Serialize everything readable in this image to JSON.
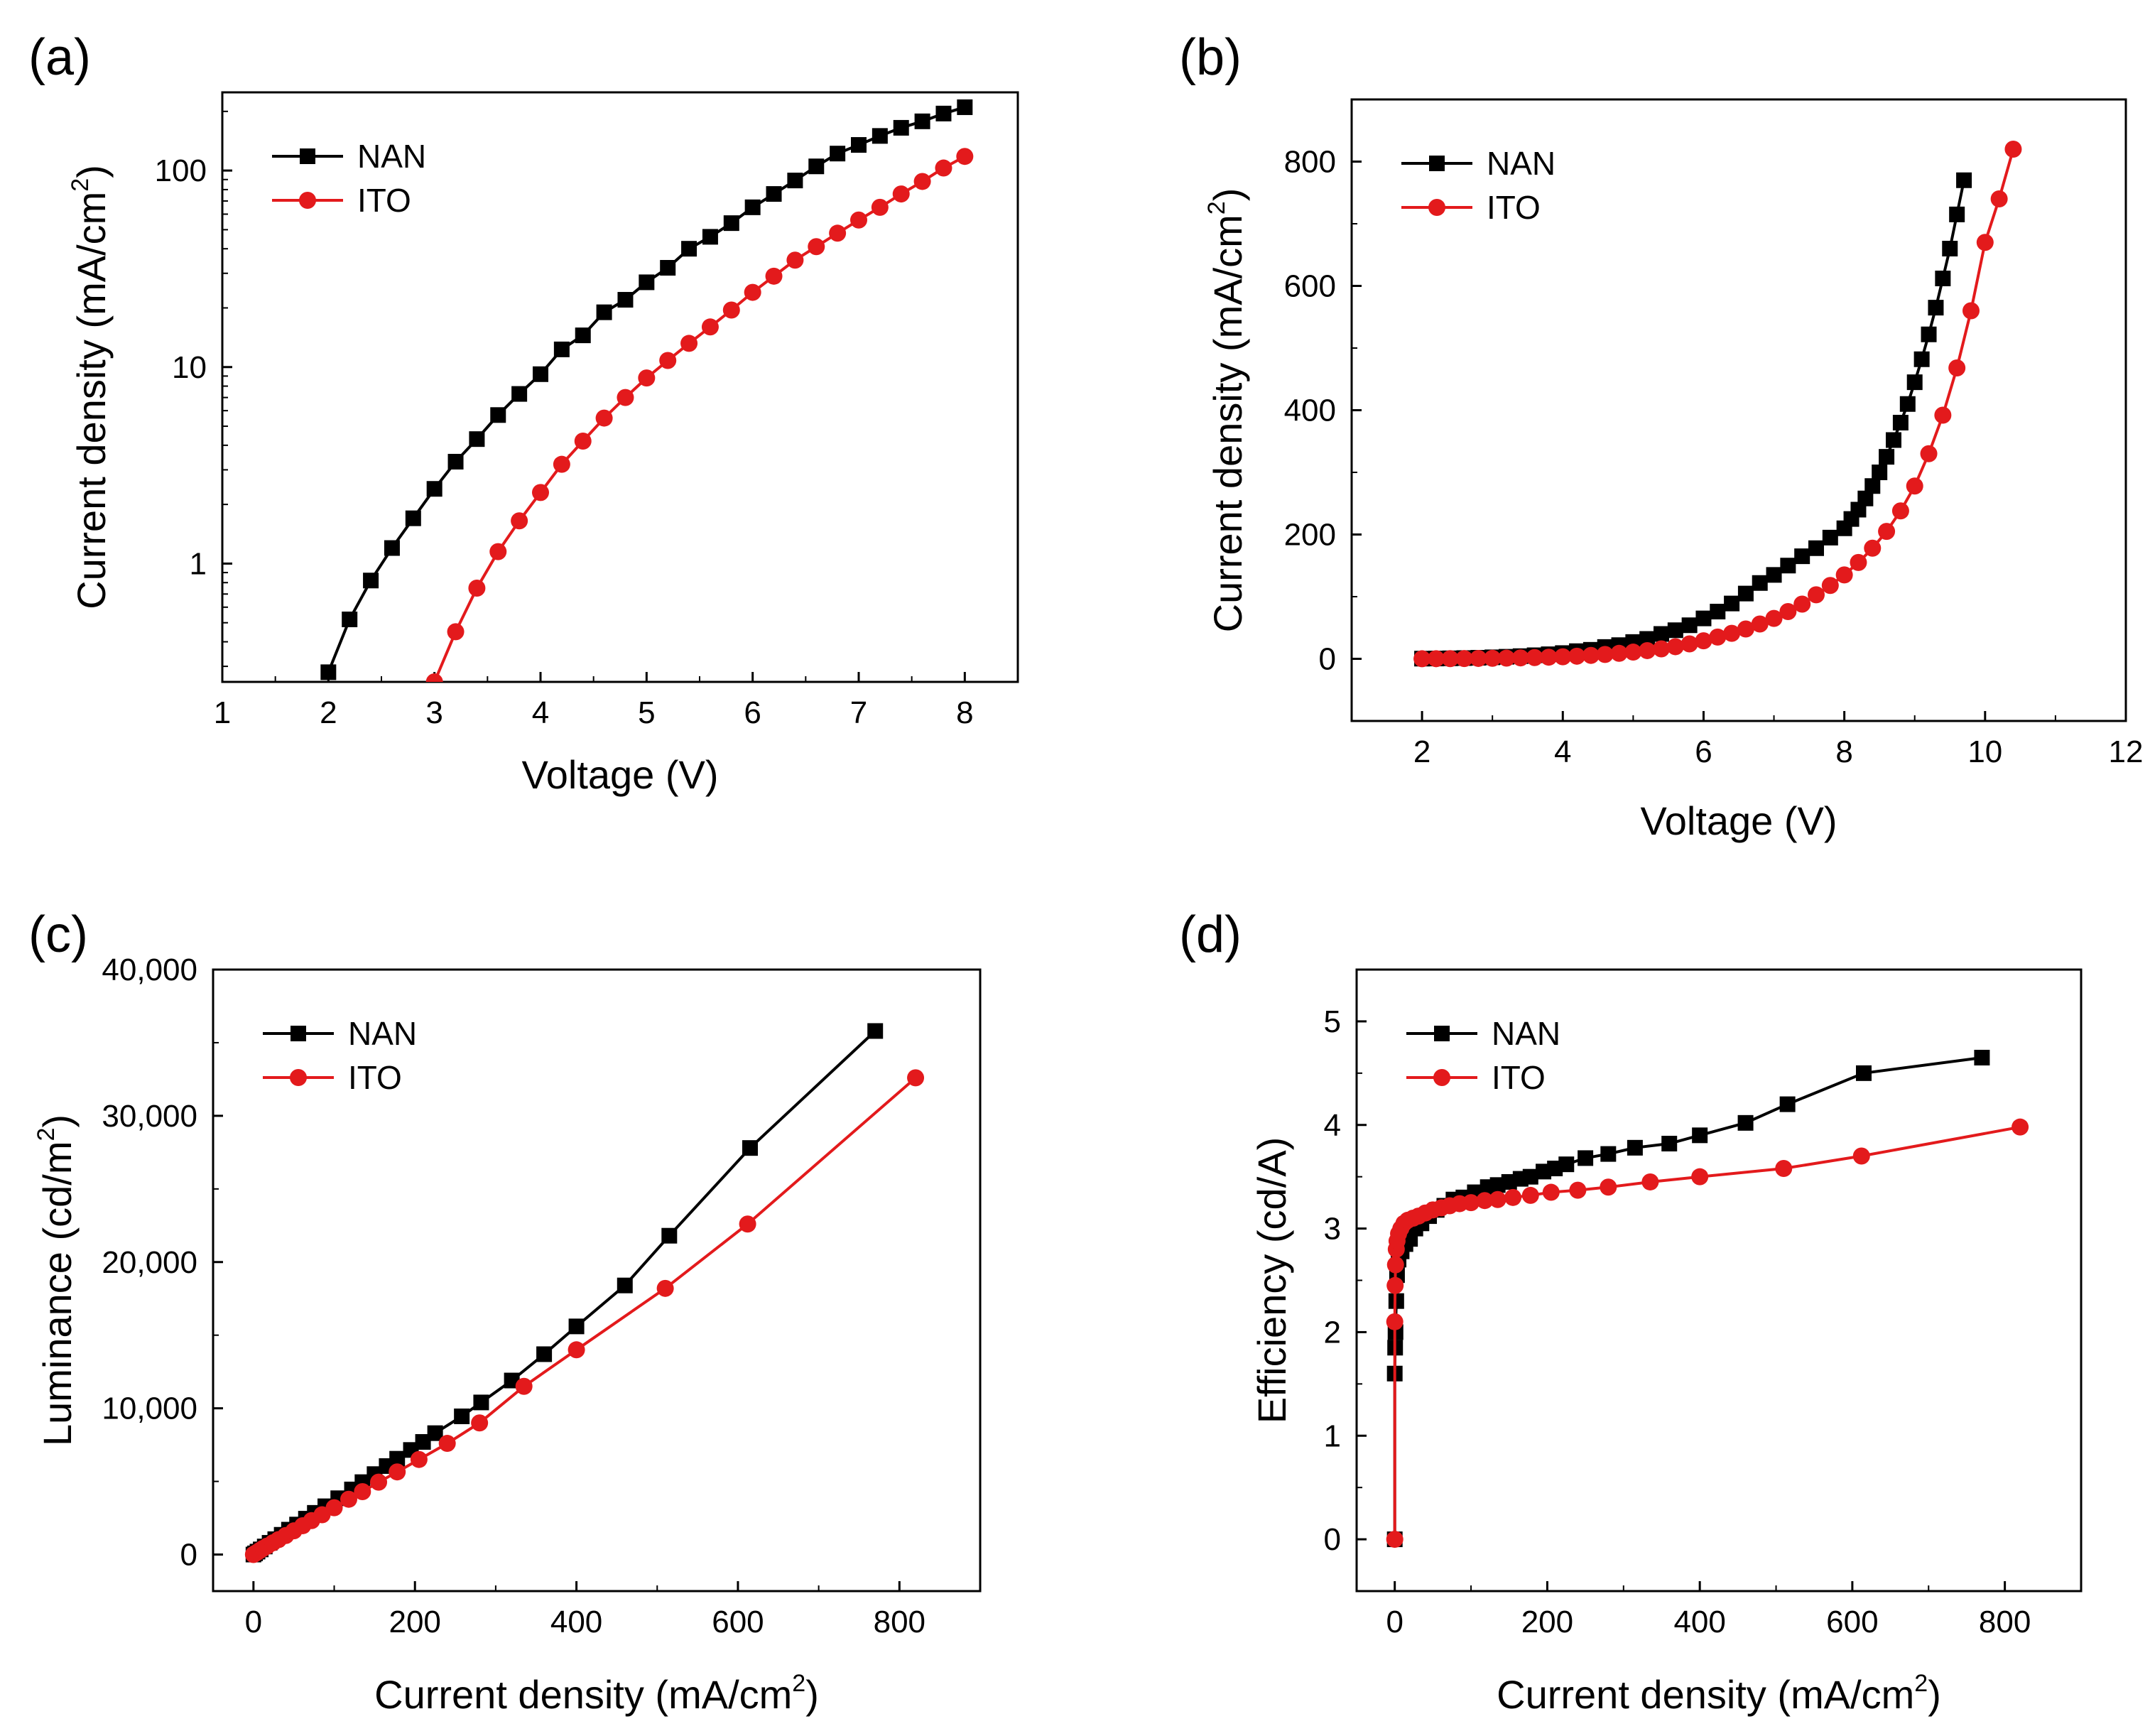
{
  "figure": {
    "title": ""
  },
  "chart_data": [
    {
      "panel": "(a)",
      "type": "line",
      "title": "",
      "xlabel": "Voltage (V)",
      "ylabel_main": "Current density (mA/cm",
      "ylabel_sup": "2",
      "ylabel_end": ")",
      "xscale": "linear",
      "yscale": "log",
      "xlim": [
        1,
        8.5
      ],
      "ylim": [
        0.25,
        250
      ],
      "xticks": [
        1,
        2,
        3,
        4,
        5,
        6,
        7,
        8
      ],
      "xtick_labels": [
        "1",
        "2",
        "3",
        "4",
        "5",
        "6",
        "7",
        "8"
      ],
      "yticks": [
        1,
        10,
        100
      ],
      "ytick_labels": [
        "1",
        "10",
        "100"
      ],
      "legend_position": "top-left",
      "series": [
        {
          "name": "NAN",
          "color": "#000000",
          "marker": "square",
          "x": [
            2.0,
            2.2,
            2.4,
            2.6,
            2.8,
            3.0,
            3.2,
            3.4,
            3.6,
            3.8,
            4.0,
            4.2,
            4.4,
            4.6,
            4.8,
            5.0,
            5.2,
            5.4,
            5.6,
            5.8,
            6.0,
            6.2,
            6.4,
            6.6,
            6.8,
            7.0,
            7.2,
            7.4,
            7.6,
            7.8,
            8.0
          ],
          "y": [
            0.28,
            0.52,
            0.82,
            1.2,
            1.7,
            2.4,
            3.3,
            4.3,
            5.7,
            7.3,
            9.2,
            12.3,
            14.5,
            19.0,
            22.0,
            27.0,
            32.0,
            40.0,
            46.0,
            54.0,
            65.0,
            76.0,
            89.0,
            105.0,
            122.0,
            135.0,
            150.0,
            165.0,
            178.0,
            195.0,
            210.0
          ]
        },
        {
          "name": "ITO",
          "color": "#e31a1c",
          "marker": "circle",
          "x": [
            3.0,
            3.2,
            3.4,
            3.6,
            3.8,
            4.0,
            4.2,
            4.4,
            4.6,
            4.8,
            5.0,
            5.2,
            5.4,
            5.6,
            5.8,
            6.0,
            6.2,
            6.4,
            6.6,
            6.8,
            7.0,
            7.2,
            7.4,
            7.6,
            7.8,
            8.0
          ],
          "y": [
            0.25,
            0.45,
            0.75,
            1.15,
            1.65,
            2.3,
            3.2,
            4.2,
            5.5,
            7.0,
            8.8,
            10.8,
            13.2,
            16.0,
            19.5,
            24.0,
            29.0,
            35.0,
            41.0,
            48.0,
            56.0,
            65.0,
            76.0,
            88.0,
            103.0,
            118.0
          ]
        }
      ]
    },
    {
      "panel": "(b)",
      "type": "line",
      "title": "",
      "xlabel": "Voltage (V)",
      "ylabel_main": "Current density (mA/cm",
      "ylabel_sup": "2",
      "ylabel_end": ")",
      "xscale": "linear",
      "yscale": "linear",
      "xlim": [
        1,
        12
      ],
      "ylim": [
        -100,
        900
      ],
      "xticks": [
        2,
        4,
        6,
        8,
        10,
        12
      ],
      "xtick_labels": [
        "2",
        "4",
        "6",
        "8",
        "10",
        "12"
      ],
      "yticks": [
        0,
        200,
        400,
        600,
        800
      ],
      "ytick_labels": [
        "0",
        "200",
        "400",
        "600",
        "800"
      ],
      "legend_position": "top-left",
      "series": [
        {
          "name": "NAN",
          "color": "#000000",
          "marker": "square",
          "x": [
            2.0,
            2.2,
            2.4,
            2.6,
            2.8,
            3.0,
            3.2,
            3.4,
            3.6,
            3.8,
            4.0,
            4.2,
            4.4,
            4.6,
            4.8,
            5.0,
            5.2,
            5.4,
            5.6,
            5.8,
            6.0,
            6.2,
            6.4,
            6.6,
            6.8,
            7.0,
            7.2,
            7.4,
            7.6,
            7.8,
            8.0,
            8.1,
            8.2,
            8.3,
            8.4,
            8.5,
            8.6,
            8.7,
            8.8,
            8.9,
            9.0,
            9.1,
            9.2,
            9.3,
            9.4,
            9.5,
            9.6,
            9.7
          ],
          "y": [
            0.3,
            0.5,
            0.8,
            1.2,
            1.7,
            2.4,
            3.3,
            4.3,
            5.7,
            7.3,
            9.2,
            12.3,
            14.5,
            19.0,
            22.0,
            27.0,
            32.0,
            40.0,
            46.0,
            54.0,
            65.0,
            76.0,
            89.0,
            105.0,
            122.0,
            135.0,
            150.0,
            165.0,
            178.0,
            195.0,
            210.0,
            225.0,
            240.0,
            258.0,
            278.0,
            300.0,
            325.0,
            352.0,
            380.0,
            410.0,
            445.0,
            482.0,
            522.0,
            565.0,
            612.0,
            660.0,
            715.0,
            770.0
          ]
        },
        {
          "name": "ITO",
          "color": "#e31a1c",
          "marker": "circle",
          "x": [
            2.0,
            2.2,
            2.4,
            2.6,
            2.8,
            3.0,
            3.2,
            3.4,
            3.6,
            3.8,
            4.0,
            4.2,
            4.4,
            4.6,
            4.8,
            5.0,
            5.2,
            5.4,
            5.6,
            5.8,
            6.0,
            6.2,
            6.4,
            6.6,
            6.8,
            7.0,
            7.2,
            7.4,
            7.6,
            7.8,
            8.0,
            8.2,
            8.4,
            8.6,
            8.8,
            9.0,
            9.2,
            9.4,
            9.6,
            9.8,
            10.0,
            10.2,
            10.4
          ],
          "y": [
            0.1,
            0.2,
            0.3,
            0.4,
            0.6,
            0.8,
            1.1,
            1.5,
            2.0,
            2.6,
            3.3,
            4.2,
            5.5,
            7.0,
            8.8,
            10.8,
            13.2,
            16.0,
            19.5,
            24.0,
            29.0,
            35.0,
            41.0,
            48.0,
            56.0,
            65.0,
            76.0,
            88.0,
            103.0,
            118.0,
            135.0,
            155.0,
            178.0,
            205.0,
            238.0,
            278.0,
            330.0,
            392.0,
            468.0,
            560.0,
            670.0,
            740.0,
            820.0
          ]
        }
      ]
    },
    {
      "panel": "(c)",
      "type": "line",
      "title": "",
      "xlabel_main": "Current density (mA/cm",
      "xlabel_sup": "2",
      "xlabel_end": ")",
      "ylabel_main": "Luminance (cd/m",
      "ylabel_sup": "2",
      "ylabel_end": ")",
      "xscale": "linear",
      "yscale": "linear",
      "xlim": [
        -50,
        900
      ],
      "ylim": [
        -2500,
        40000
      ],
      "xticks": [
        0,
        200,
        400,
        600,
        800
      ],
      "xtick_labels": [
        "0",
        "200",
        "400",
        "600",
        "800"
      ],
      "yticks": [
        0,
        10000,
        20000,
        30000,
        40000
      ],
      "ytick_labels": [
        "0",
        "10,000",
        "20,000",
        "30,000",
        "40,000"
      ],
      "legend_position": "top-left",
      "series": [
        {
          "name": "NAN",
          "color": "#000000",
          "marker": "square",
          "x": [
            0,
            2,
            5,
            9,
            14,
            20,
            27,
            35,
            44,
            54,
            65,
            76,
            89,
            105,
            122,
            135,
            150,
            165,
            178,
            195,
            210,
            225,
            258,
            282,
            320,
            360,
            400,
            460,
            515,
            615,
            770
          ],
          "y": [
            0,
            80,
            200,
            350,
            550,
            800,
            1050,
            1350,
            1700,
            2050,
            2450,
            2850,
            3300,
            3850,
            4450,
            4950,
            5500,
            6050,
            6550,
            7150,
            7700,
            8300,
            9450,
            10400,
            11900,
            13700,
            15600,
            18400,
            21800,
            27800,
            35800
          ]
        },
        {
          "name": "ITO",
          "color": "#e31a1c",
          "marker": "circle",
          "x": [
            0,
            2,
            5,
            8,
            12,
            17,
            24,
            31,
            40,
            50,
            61,
            72,
            85,
            100,
            118,
            135,
            155,
            178,
            205,
            240,
            280,
            335,
            400,
            510,
            612,
            820
          ],
          "y": [
            0,
            70,
            170,
            280,
            420,
            580,
            800,
            1020,
            1300,
            1620,
            1970,
            2320,
            2720,
            3200,
            3780,
            4300,
            4950,
            5650,
            6500,
            7600,
            9000,
            11500,
            14000,
            18200,
            22600,
            32600
          ]
        }
      ]
    },
    {
      "panel": "(d)",
      "type": "line",
      "title": "",
      "xlabel_main": "Current density (mA/cm",
      "xlabel_sup": "2",
      "xlabel_end": ")",
      "ylabel": "Efficiency (cd/A)",
      "xscale": "linear",
      "yscale": "linear",
      "xlim": [
        -50,
        900
      ],
      "ylim": [
        -0.5,
        5.5
      ],
      "xticks": [
        0,
        200,
        400,
        600,
        800
      ],
      "xtick_labels": [
        "0",
        "200",
        "400",
        "600",
        "800"
      ],
      "yticks": [
        0,
        1,
        2,
        3,
        4,
        5
      ],
      "ytick_labels": [
        "0",
        "1",
        "2",
        "3",
        "4",
        "5"
      ],
      "legend_position": "top-left",
      "series": [
        {
          "name": "NAN",
          "color": "#000000",
          "marker": "square",
          "x": [
            0,
            0,
            0.5,
            1,
            2,
            3,
            5,
            9,
            14,
            20,
            27,
            35,
            45,
            55,
            65,
            77,
            90,
            105,
            122,
            135,
            150,
            165,
            178,
            195,
            210,
            225,
            250,
            280,
            315,
            360,
            400,
            460,
            515,
            615,
            770
          ],
          "y": [
            0,
            1.6,
            1.85,
            2.0,
            2.3,
            2.55,
            2.7,
            2.78,
            2.85,
            2.9,
            3.0,
            3.05,
            3.12,
            3.18,
            3.22,
            3.28,
            3.3,
            3.35,
            3.4,
            3.42,
            3.45,
            3.48,
            3.5,
            3.55,
            3.58,
            3.62,
            3.68,
            3.72,
            3.78,
            3.82,
            3.9,
            4.02,
            4.2,
            4.5,
            4.65
          ]
        },
        {
          "name": "ITO",
          "color": "#e31a1c",
          "marker": "circle",
          "x": [
            0,
            0,
            0.5,
            1,
            2,
            3,
            5,
            8,
            12,
            17,
            24,
            31,
            40,
            50,
            61,
            72,
            85,
            100,
            118,
            135,
            155,
            178,
            205,
            240,
            280,
            335,
            400,
            510,
            612,
            820
          ],
          "y": [
            0,
            2.1,
            2.45,
            2.65,
            2.8,
            2.88,
            2.95,
            3.0,
            3.05,
            3.08,
            3.1,
            3.12,
            3.15,
            3.18,
            3.2,
            3.22,
            3.24,
            3.25,
            3.27,
            3.28,
            3.3,
            3.32,
            3.35,
            3.37,
            3.4,
            3.45,
            3.5,
            3.58,
            3.7,
            3.98
          ]
        }
      ]
    }
  ]
}
